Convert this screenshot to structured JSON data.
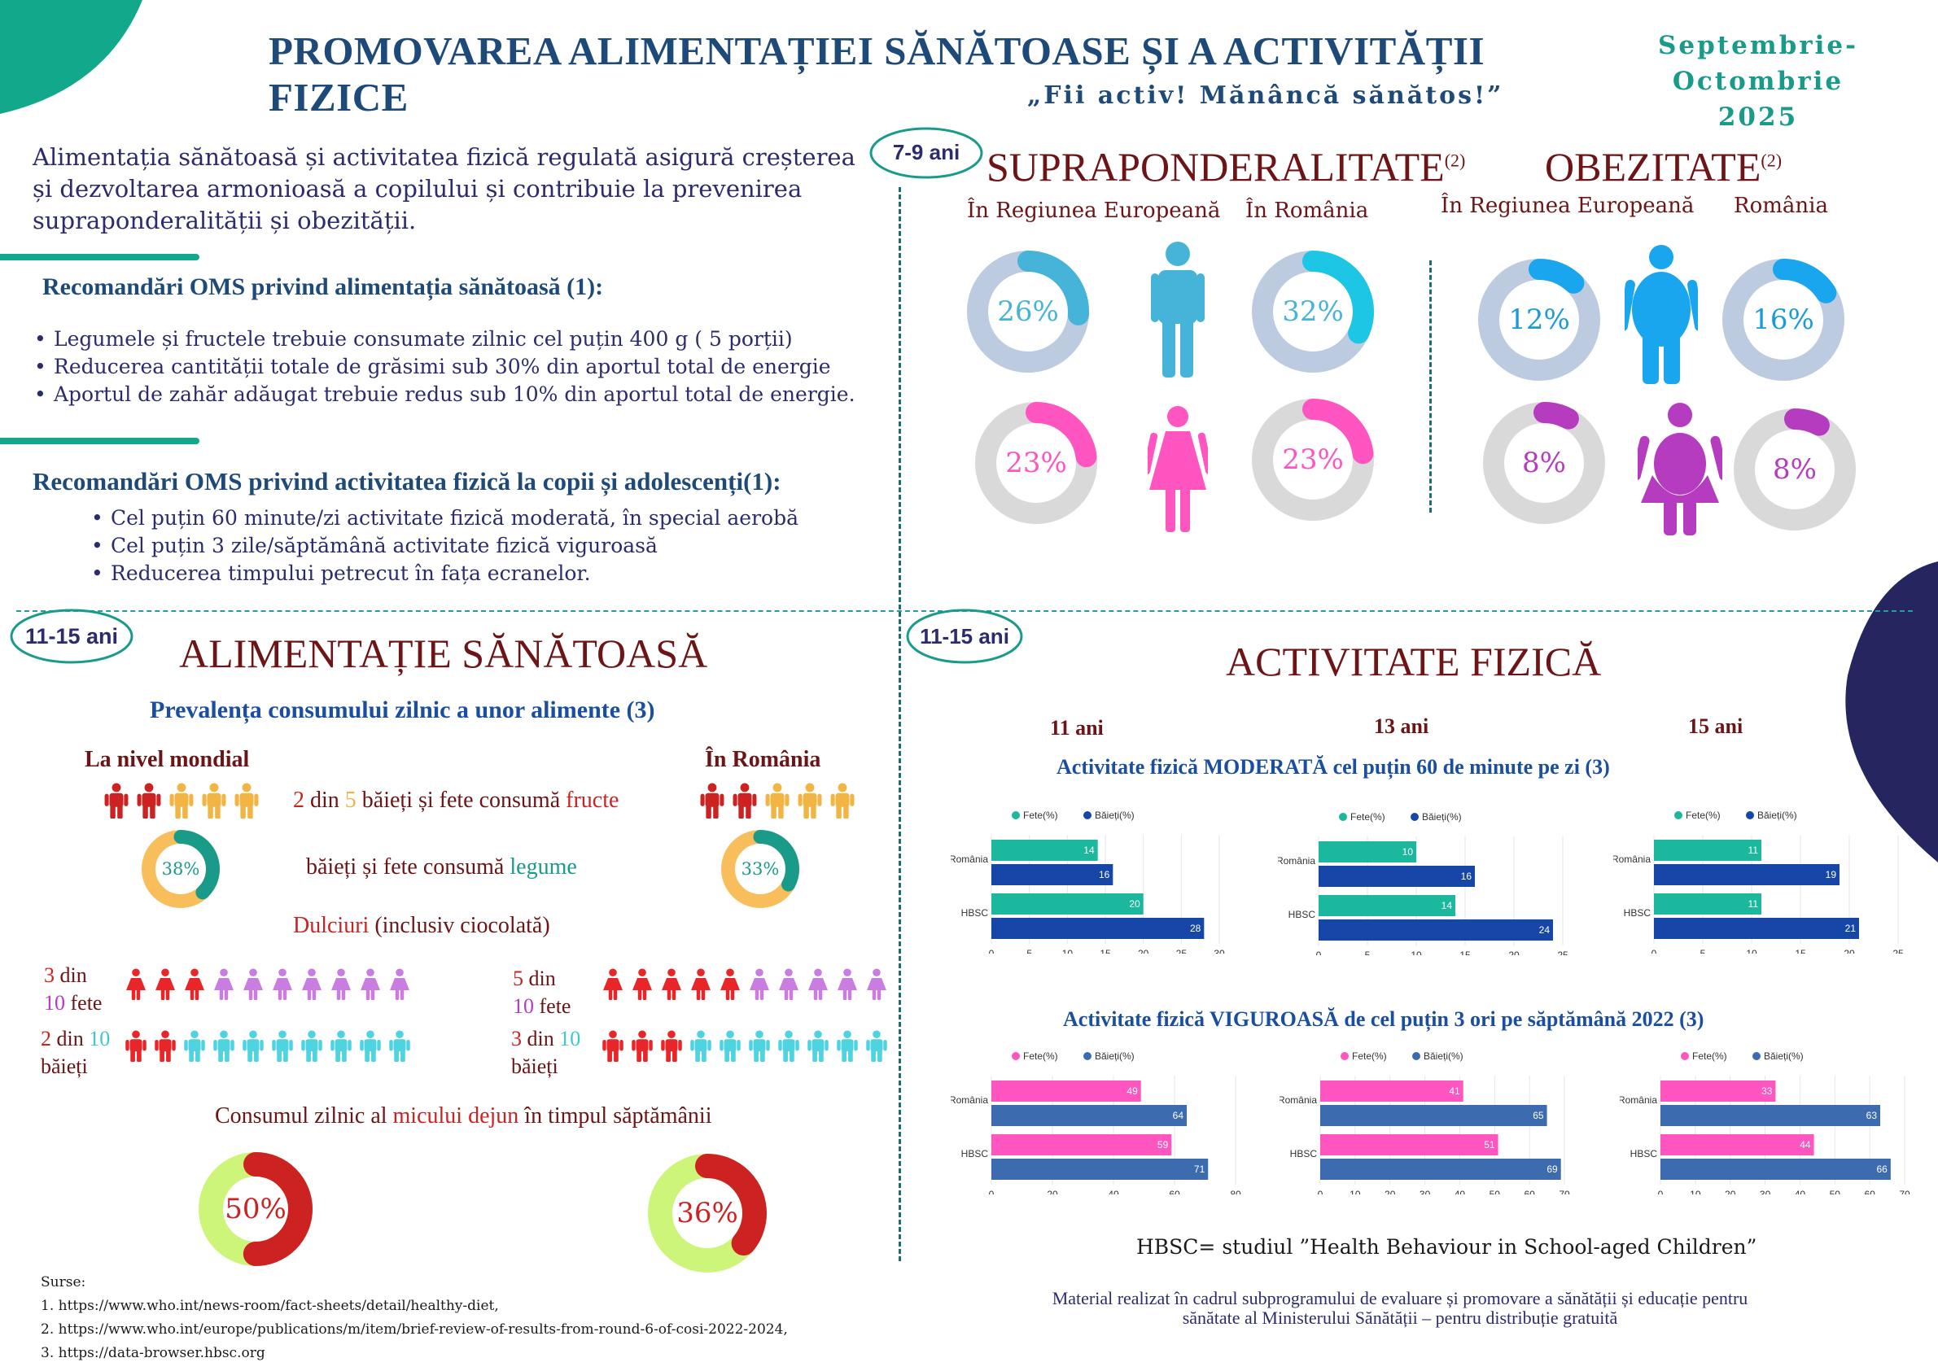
{
  "header": {
    "title": "PROMOVAREA ALIMENTAȚIEI SĂNĂTOASE ȘI A ACTIVITĂȚII FIZICE",
    "subtitle": "„Fii activ! Mănâncă sănătos!”",
    "date_line1": "Septembrie-",
    "date_line2": "Octombrie 2025"
  },
  "intro": {
    "text_line1": "Alimentația sănătoasă și activitatea fizică regulată asigură creșterea",
    "text_line2": "și dezvoltarea armonioasă a copilului și contribuie la prevenirea",
    "text_line3": "supraponderalității și obezității."
  },
  "diet_recs": {
    "title": "Recomandări OMS privind alimentația sănătoasă (1):",
    "items": [
      "Legumele și fructele trebuie consumate zilnic cel puțin 400 g ( 5 porții)",
      "Reducerea cantității totale de grăsimi sub 30% din aportul total de energie",
      "Aportul de zahăr adăugat trebuie redus sub 10% din aportul total de energie."
    ]
  },
  "activity_recs": {
    "title": "Recomandări OMS privind activitatea fizică la copii și adolescenți(1):",
    "items": [
      "Cel puțin 60 minute/zi activitate fizică moderată, în special aerobă",
      "Cel puțin 3 zile/săptămână activitate fizică viguroasă",
      "Reducerea timpului petrecut în fața ecranelor."
    ]
  },
  "overweight": {
    "age_badge": "7-9 ani",
    "title_over": "SUPRAPONDERALITATE",
    "title_over_sup": "(2)",
    "title_obese": "OBEZITATE",
    "title_obese_sup": "(2)",
    "col_eu": "În Regiunea Europeană",
    "col_ro": "În România",
    "col_eu2": "În Regiunea Europeană",
    "col_ro2": "România",
    "boys_over_eu": "26%",
    "boys_over_ro": "32%",
    "girls_over_eu": "23%",
    "girls_over_ro": "23%",
    "boys_obese_eu": "12%",
    "boys_obese_ro": "16%",
    "girls_obese_eu": "8%",
    "girls_obese_ro": "8%",
    "values": {
      "boys_over_eu": 26,
      "boys_over_ro": 32,
      "girls_over_eu": 23,
      "girls_over_ro": 23,
      "boys_obese_eu": 12,
      "boys_obese_ro": 16,
      "girls_obese_eu": 8,
      "girls_obese_ro": 8
    }
  },
  "nutrition": {
    "age_badge": "11-15 ani",
    "title": "ALIMENTAȚIE SĂNĂTOASĂ",
    "subtitle": "Prevalența consumului zilnic a unor alimente  (3)",
    "world_label": "La nivel mondial",
    "ro_label": "În România",
    "fruit_2": "2",
    "fruit_din": " din ",
    "fruit_5": "5",
    "fruit_mid": " băieți și fete consumă ",
    "fruit_word": "fructe",
    "veg_text": "băieți și fete consumă ",
    "veg_word": "legume",
    "veg_world": "38%",
    "veg_ro": "33%",
    "veg_values": {
      "world": 38,
      "ro": 33
    },
    "sweets_word": "Dulciuri",
    "sweets_rest": " (inclusiv ciocolată)",
    "girls_world_a": "3",
    "girls_world_b": " din",
    "girls_world_c": "10",
    "girls_world_d": " fete",
    "boys_world_a": "2",
    "boys_world_b": " din ",
    "boys_world_c": "10",
    "boys_world_d": "băieți",
    "girls_ro_a": "5",
    "girls_ro_b": " din",
    "girls_ro_c": "10",
    "girls_ro_d": " fete",
    "boys_ro_a": "3",
    "boys_ro_b": " din ",
    "boys_ro_c": "10",
    "boys_ro_d": "băieți",
    "breakfast_a": "Consumul zilnic al ",
    "breakfast_word": "micului dejun",
    "breakfast_c": " în timpul săptămânii",
    "breakfast_world": "50%",
    "breakfast_ro": "36%",
    "breakfast_values": {
      "world": 50,
      "ro": 36
    }
  },
  "activity": {
    "age_badge": "11-15 ani",
    "title": "ACTIVITATE FIZICĂ",
    "age_11": "11 ani",
    "age_13": "13 ani",
    "age_15": "15 ani",
    "moderate_title": "Activitate fizică MODERATĂ  cel puțin 60 de minute pe zi (3)",
    "vigorous_title": "Activitate fizică VIGUROASĂ  de cel puțin 3 ori pe săptămână 2022 (3)",
    "legend_girls": "Fete(%)",
    "legend_boys": "Băieți(%)",
    "cat_ro": "România",
    "cat_hbsc": "HBSC",
    "hbsc_note": "HBSC= studiul ”Health Behaviour in School-aged Children”"
  },
  "chart_data": [
    {
      "type": "bar",
      "title": "",
      "categories": [
        "România",
        "HBSC"
      ],
      "series": [
        {
          "name": "Fete(%)",
          "values": [
            14,
            20
          ]
        },
        {
          "name": "Băieți(%)",
          "values": [
            16,
            28
          ]
        }
      ],
      "xlim": [
        0,
        30
      ],
      "ticks": [
        0,
        5,
        10,
        15,
        20,
        25,
        30
      ],
      "colors": [
        "#1bb89e",
        "#1646a8"
      ]
    },
    {
      "type": "bar",
      "title": "",
      "categories": [
        "România",
        "HBSC"
      ],
      "series": [
        {
          "name": "Fete(%)",
          "values": [
            10,
            14
          ]
        },
        {
          "name": "Băieți(%)",
          "values": [
            16,
            24
          ]
        }
      ],
      "xlim": [
        0,
        25
      ],
      "ticks": [
        0,
        5,
        10,
        15,
        20,
        25
      ],
      "colors": [
        "#1bb89e",
        "#1646a8"
      ]
    },
    {
      "type": "bar",
      "title": "",
      "categories": [
        "România",
        "HBSC"
      ],
      "series": [
        {
          "name": "Fete(%)",
          "values": [
            11,
            11
          ]
        },
        {
          "name": "Băieți(%)",
          "values": [
            19,
            21
          ]
        }
      ],
      "xlim": [
        0,
        25
      ],
      "ticks": [
        0,
        5,
        10,
        15,
        20,
        25
      ],
      "colors": [
        "#1bb89e",
        "#1646a8"
      ]
    },
    {
      "type": "bar",
      "title": "",
      "categories": [
        "România",
        "HBSC"
      ],
      "series": [
        {
          "name": "Fete(%)",
          "values": [
            49,
            59
          ]
        },
        {
          "name": "Băieți(%)",
          "values": [
            64,
            71
          ]
        }
      ],
      "xlim": [
        0,
        80
      ],
      "ticks": [
        0,
        20,
        40,
        60,
        80
      ],
      "colors": [
        "#ff55c0",
        "#3d6bb0"
      ]
    },
    {
      "type": "bar",
      "title": "",
      "categories": [
        "România",
        "HBSC"
      ],
      "series": [
        {
          "name": "Fete(%)",
          "values": [
            41,
            51
          ]
        },
        {
          "name": "Băieți(%)",
          "values": [
            65,
            69
          ]
        }
      ],
      "xlim": [
        0,
        70
      ],
      "ticks": [
        0,
        10,
        20,
        30,
        40,
        50,
        60,
        70
      ],
      "colors": [
        "#ff55c0",
        "#3d6bb0"
      ]
    },
    {
      "type": "bar",
      "title": "",
      "categories": [
        "România",
        "HBSC"
      ],
      "series": [
        {
          "name": "Fete(%)",
          "values": [
            33,
            44
          ]
        },
        {
          "name": "Băieți(%)",
          "values": [
            63,
            66
          ]
        }
      ],
      "xlim": [
        0,
        70
      ],
      "ticks": [
        0,
        10,
        20,
        30,
        40,
        50,
        60,
        70
      ],
      "colors": [
        "#ff55c0",
        "#3d6bb0"
      ]
    }
  ],
  "sources": {
    "title": "Surse:",
    "s1": " 1. https://www.who.int/news-room/fact-sheets/detail/healthy-diet,",
    "s2": " 2. https://www.who.int/europe/publications/m/item/brief-review-of-results-from-round-6-of-cosi-2022-2024,",
    "s3": "3. https://data-browser.hbsc.org"
  },
  "footer": {
    "line1": "Material realizat în cadrul subprogramului de evaluare și promovare a sănătății și educație pentru",
    "line2": "sănătate al Ministerului Sănătății – pentru distribuție gratuită"
  },
  "colors": {
    "teal": "#1a9b8a",
    "navy": "#1e4a7a",
    "dark_red": "#6d1416",
    "deep_navy": "#252560"
  }
}
